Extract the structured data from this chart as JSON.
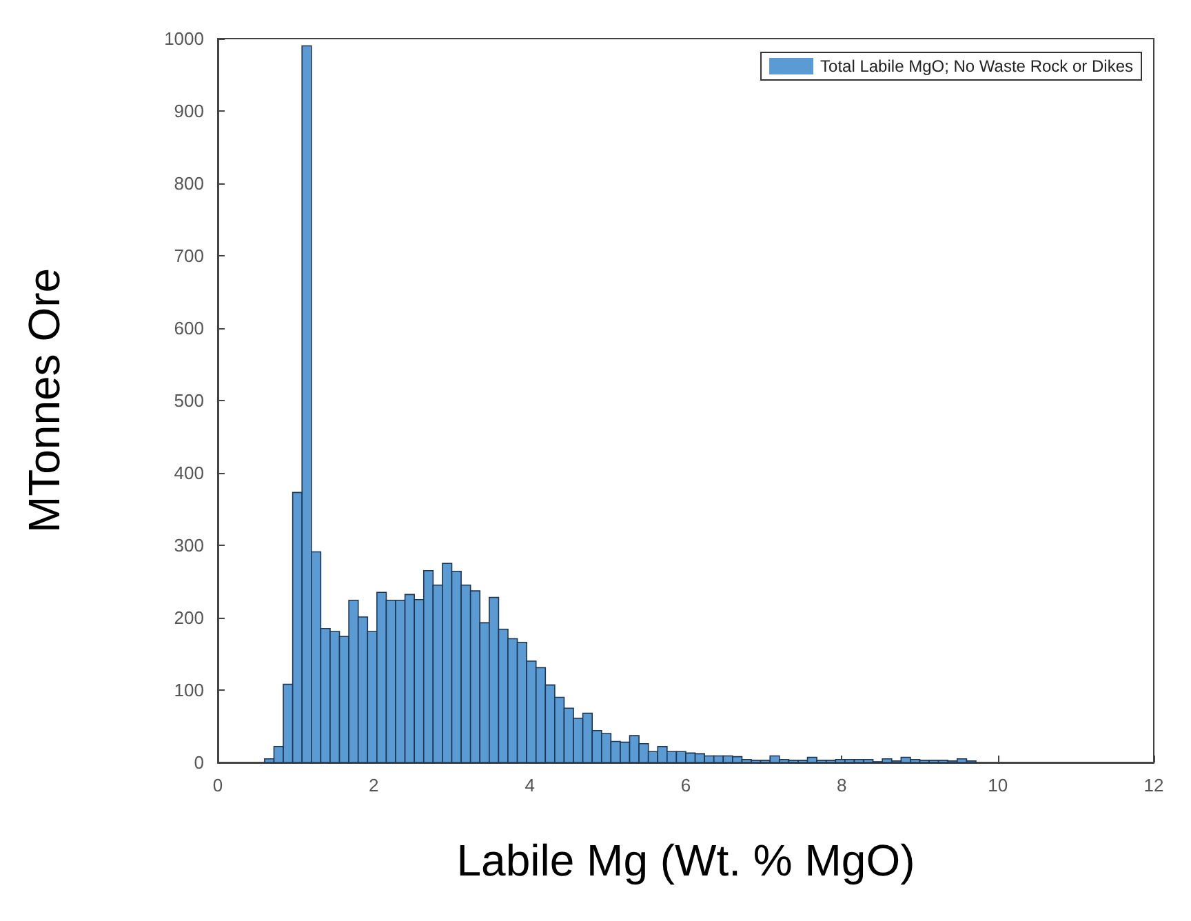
{
  "chart_data": {
    "type": "histogram",
    "xlabel": "Labile Mg (Wt. % MgO)",
    "ylabel": "MTonnes Ore",
    "series": [
      {
        "name": "Total Labile MgO; No Waste Rock or Dikes",
        "color": "#5a9bd4",
        "values": [
          5,
          22,
          108,
          373,
          990,
          291,
          185,
          181,
          174,
          224,
          201,
          181,
          235,
          224,
          224,
          232,
          225,
          265,
          245,
          275,
          264,
          245,
          237,
          193,
          228,
          184,
          171,
          166,
          140,
          131,
          107,
          90,
          75,
          61,
          68,
          44,
          40,
          29,
          28,
          37,
          26,
          15,
          22,
          15,
          15,
          13,
          12,
          9,
          9,
          9,
          8,
          4,
          3,
          3,
          9,
          4,
          3,
          3,
          7,
          3,
          3,
          4,
          4,
          4,
          4,
          1,
          5,
          2,
          7,
          4,
          3,
          3,
          3,
          2,
          5,
          2
        ]
      }
    ],
    "bins": [
      0.6,
      0.72,
      0.84,
      0.96,
      1.08,
      1.2,
      1.32,
      1.44,
      1.56,
      1.68,
      1.8,
      1.92,
      2.04,
      2.16,
      2.28,
      2.4,
      2.52,
      2.64,
      2.76,
      2.88,
      3,
      3.12,
      3.24,
      3.36,
      3.48,
      3.6,
      3.72,
      3.84,
      3.96,
      4.08,
      4.2,
      4.32,
      4.44,
      4.56,
      4.68,
      4.8,
      4.92,
      5.04,
      5.16,
      5.28,
      5.4,
      5.52,
      5.64,
      5.76,
      5.88,
      6,
      6.12,
      6.24,
      6.36,
      6.48,
      6.6,
      6.72,
      6.84,
      6.96,
      7.08,
      7.2,
      7.32,
      7.44,
      7.56,
      7.68,
      7.8,
      7.92,
      8.04,
      8.16,
      8.28,
      8.4,
      8.52,
      8.64,
      8.76,
      8.88,
      9,
      9.12,
      9.24,
      9.36,
      9.48,
      9.6,
      9.72
    ],
    "xlim": [
      0,
      12
    ],
    "xticks": [
      0,
      2,
      4,
      6,
      8,
      10,
      12
    ],
    "ylim": [
      0,
      1000
    ],
    "yticks": [
      0,
      100,
      200,
      300,
      400,
      500,
      600,
      700,
      800,
      900,
      1000
    ],
    "legend": "top right"
  }
}
